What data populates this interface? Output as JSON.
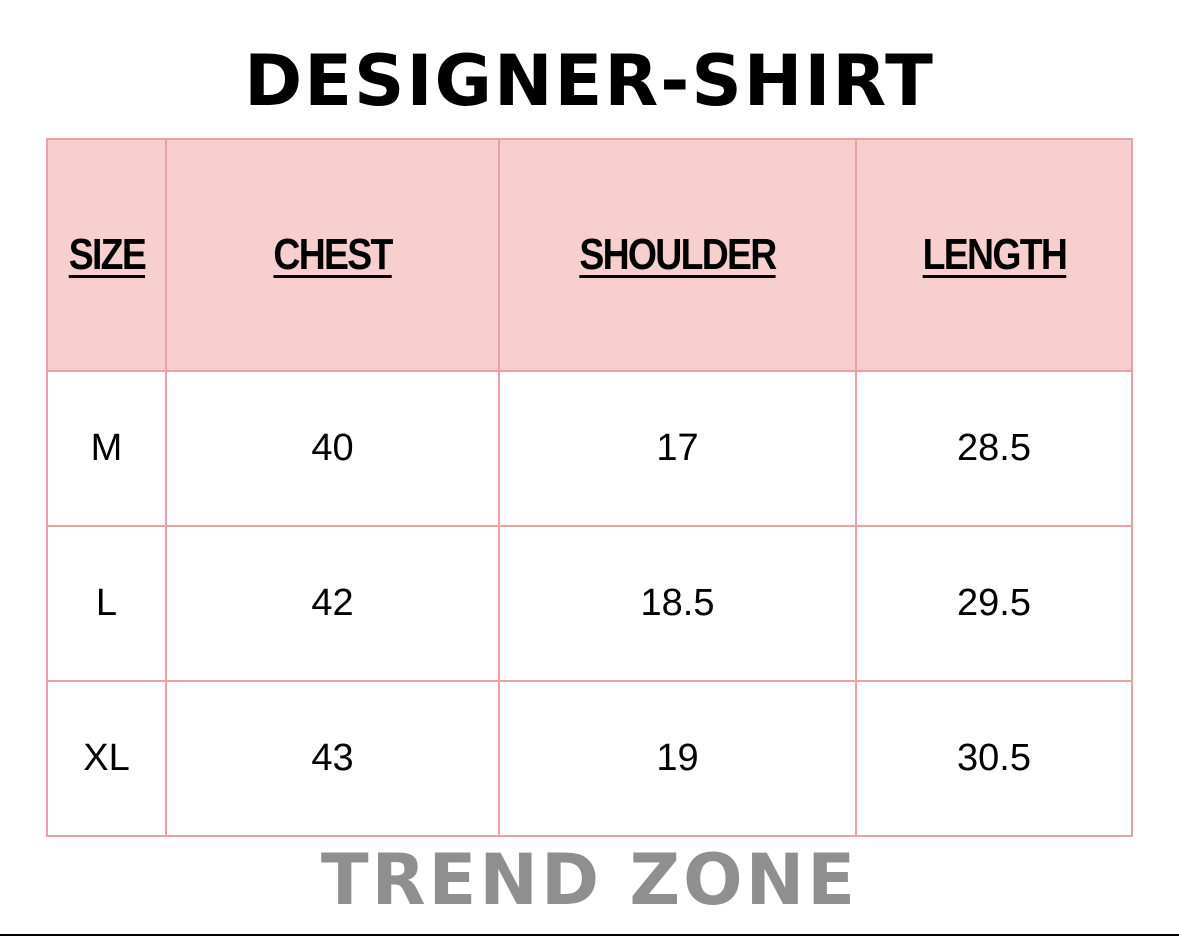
{
  "title": "DESIGNER-SHIRT",
  "table": {
    "headers": [
      "SIZE",
      "CHEST",
      "SHOULDER",
      "LENGTH"
    ],
    "rows": [
      [
        "M",
        "40",
        "17",
        "28.5"
      ],
      [
        "L",
        "42",
        "18.5",
        "29.5"
      ],
      [
        "XL",
        "43",
        "19",
        "30.5"
      ]
    ]
  },
  "footer": "TREND ZONE",
  "colors": {
    "header_bg": "#f7cfcf",
    "border": "#eba1a3",
    "footer_text": "#8f8f8f"
  }
}
